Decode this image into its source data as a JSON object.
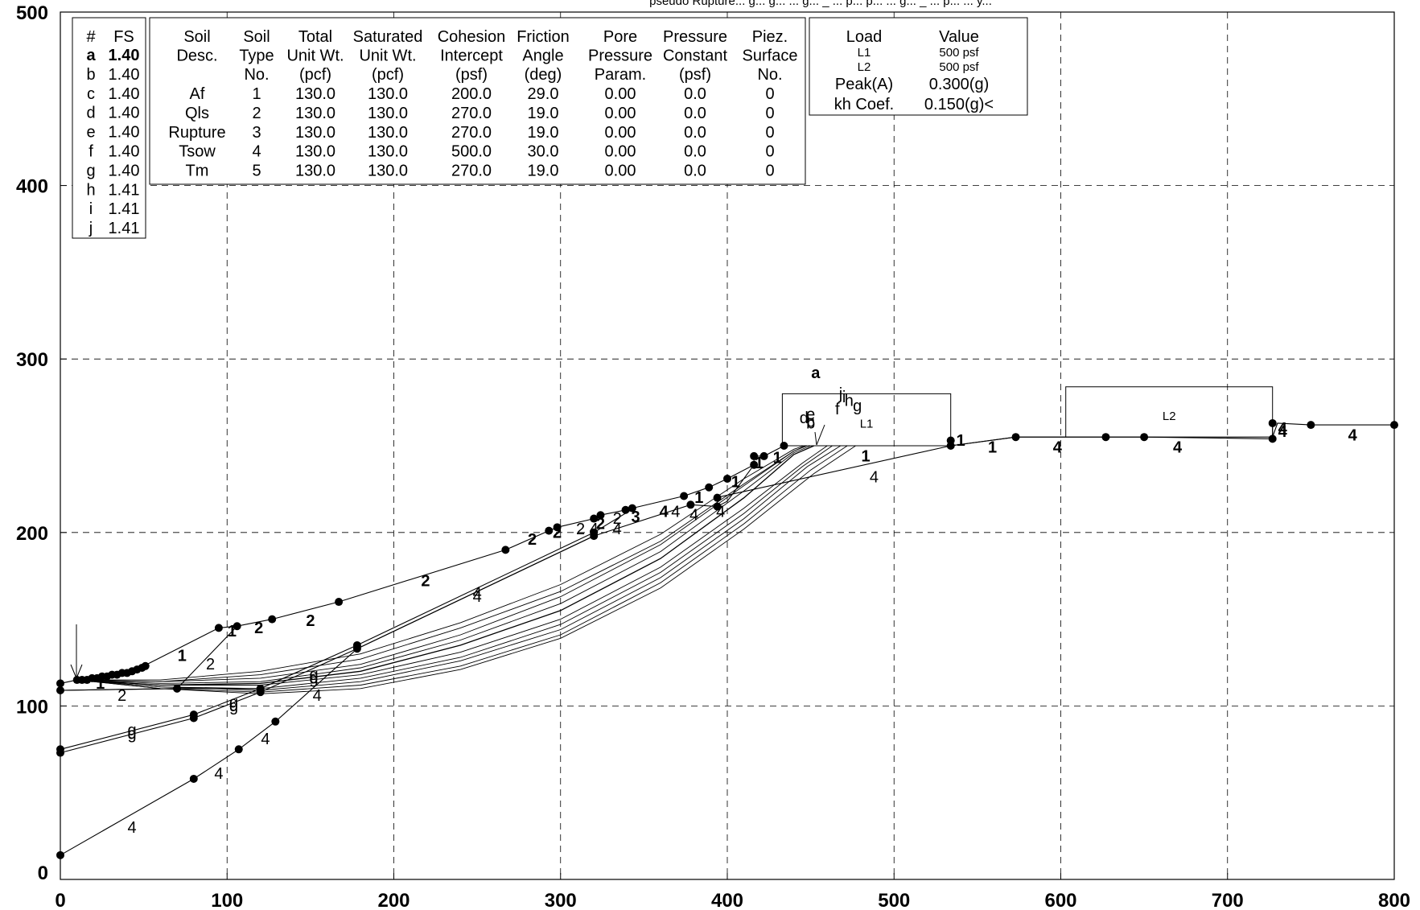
{
  "title_partial": "pseudo Rupture... g... g... ... g... _ ... p... p... ... g... _ ... p... ... y...",
  "x_axis": {
    "ticks": [
      "0",
      "100",
      "200",
      "300",
      "400",
      "500",
      "600",
      "700",
      "800"
    ]
  },
  "y_axis": {
    "ticks": [
      "0",
      "100",
      "200",
      "300",
      "400",
      "500"
    ]
  },
  "fs_table": {
    "headers": [
      "#",
      "FS"
    ],
    "rows": [
      {
        "id": "a",
        "fs": "1.40",
        "bold": true
      },
      {
        "id": "b",
        "fs": "1.40"
      },
      {
        "id": "c",
        "fs": "1.40"
      },
      {
        "id": "d",
        "fs": "1.40"
      },
      {
        "id": "e",
        "fs": "1.40"
      },
      {
        "id": "f",
        "fs": "1.40"
      },
      {
        "id": "g",
        "fs": "1.40"
      },
      {
        "id": "h",
        "fs": "1.41"
      },
      {
        "id": "i",
        "fs": "1.41"
      },
      {
        "id": "j",
        "fs": "1.41"
      }
    ]
  },
  "soil_table": {
    "headers": [
      [
        "Soil",
        "Desc."
      ],
      [
        "Soil",
        "Type",
        "No."
      ],
      [
        "Total",
        "Unit Wt.",
        "(pcf)"
      ],
      [
        "Saturated",
        "Unit Wt.",
        "(pcf)"
      ],
      [
        "Cohesion",
        "Intercept",
        "(psf)"
      ],
      [
        "Friction",
        "Angle",
        "(deg)"
      ],
      [
        "Pore",
        "Pressure",
        "Param."
      ],
      [
        "Pressure",
        "Constant",
        "(psf)"
      ],
      [
        "Piez.",
        "Surface",
        "No."
      ]
    ],
    "rows": [
      [
        "Af",
        "1",
        "130.0",
        "130.0",
        "200.0",
        "29.0",
        "0.00",
        "0.0",
        "0"
      ],
      [
        "Qls",
        "2",
        "130.0",
        "130.0",
        "270.0",
        "19.0",
        "0.00",
        "0.0",
        "0"
      ],
      [
        "Rupture",
        "3",
        "130.0",
        "130.0",
        "270.0",
        "19.0",
        "0.00",
        "0.0",
        "0"
      ],
      [
        "Tsow",
        "4",
        "130.0",
        "130.0",
        "500.0",
        "30.0",
        "0.00",
        "0.0",
        "0"
      ],
      [
        "Tm",
        "5",
        "130.0",
        "130.0",
        "270.0",
        "19.0",
        "0.00",
        "0.0",
        "0"
      ]
    ]
  },
  "load_table": {
    "headers": [
      "Load",
      "Value"
    ],
    "rows": [
      {
        "label": "L1",
        "value": "500 psf",
        "serif": true
      },
      {
        "label": "L2",
        "value": "500 psf",
        "serif": true
      },
      {
        "label": "Peak(A)",
        "value": "0.300(g)"
      },
      {
        "label": "kh Coef.",
        "value": "0.150(g)<"
      }
    ]
  },
  "surface_loads": [
    {
      "name": "L1",
      "x1": 433,
      "x2": 534,
      "y_base": 250,
      "y_top": 280
    },
    {
      "name": "L2",
      "x1": 603,
      "x2": 727,
      "y_base": 255,
      "y_top": 284
    }
  ],
  "boundaries": [
    {
      "points": [
        [
          0,
          113
        ],
        [
          10,
          115
        ],
        [
          20,
          116
        ],
        [
          30,
          118
        ],
        [
          40,
          120
        ],
        [
          45,
          121
        ],
        [
          50,
          123
        ],
        [
          95,
          145
        ],
        [
          106,
          146
        ],
        [
          127,
          150
        ],
        [
          167,
          160
        ],
        [
          267,
          190
        ],
        [
          293,
          201
        ],
        [
          298,
          203
        ],
        [
          320,
          208
        ],
        [
          324,
          210
        ],
        [
          339,
          213
        ],
        [
          343,
          214
        ],
        [
          374,
          221
        ],
        [
          389,
          226
        ],
        [
          400,
          231
        ],
        [
          416,
          239
        ],
        [
          416,
          244
        ],
        [
          422,
          244
        ],
        [
          434,
          250
        ],
        [
          534,
          250
        ],
        [
          573,
          255
        ],
        [
          727,
          255
        ],
        [
          730,
          263
        ],
        [
          750,
          262
        ],
        [
          800,
          262
        ]
      ]
    },
    {
      "points": [
        [
          0,
          109
        ],
        [
          70,
          110
        ],
        [
          106,
          146
        ]
      ]
    },
    {
      "points": [
        [
          0,
          109
        ],
        [
          70,
          110
        ],
        [
          120,
          110
        ],
        [
          178,
          135
        ],
        [
          320,
          200
        ],
        [
          344,
          214
        ]
      ]
    },
    {
      "points": [
        [
          0,
          75
        ],
        [
          80,
          95
        ],
        [
          120,
          110
        ]
      ]
    },
    {
      "points": [
        [
          0,
          73
        ],
        [
          80,
          93
        ],
        [
          120,
          108
        ],
        [
          178,
          133
        ],
        [
          320,
          198
        ],
        [
          378,
          216
        ],
        [
          394,
          215
        ],
        [
          400,
          218
        ],
        [
          416,
          239
        ]
      ]
    },
    {
      "points": [
        [
          0,
          14
        ],
        [
          80,
          58
        ],
        [
          107,
          75
        ],
        [
          129,
          91
        ],
        [
          178,
          133
        ],
        [
          320,
          198
        ]
      ]
    },
    {
      "points": [
        [
          393,
          220
        ],
        [
          534,
          250
        ],
        [
          573,
          255
        ],
        [
          627,
          255
        ],
        [
          650,
          255
        ],
        [
          727,
          254
        ]
      ]
    },
    {
      "points": [
        [
          727,
          254
        ],
        [
          727,
          263
        ]
      ]
    }
  ],
  "slip_surfaces": [
    {
      "id": "a",
      "points": [
        [
          10,
          115
        ],
        [
          60,
          112
        ],
        [
          120,
          113
        ],
        [
          180,
          120
        ],
        [
          240,
          135
        ],
        [
          300,
          155
        ],
        [
          360,
          185
        ],
        [
          410,
          220
        ],
        [
          440,
          245
        ],
        [
          452,
          250
        ]
      ]
    },
    {
      "id": "b",
      "points": [
        [
          10,
          115
        ],
        [
          60,
          113
        ],
        [
          120,
          114
        ],
        [
          180,
          122
        ],
        [
          240,
          138
        ],
        [
          300,
          159
        ],
        [
          360,
          189
        ],
        [
          410,
          224
        ],
        [
          440,
          246
        ],
        [
          450,
          250
        ]
      ]
    },
    {
      "id": "c",
      "points": [
        [
          10,
          115
        ],
        [
          60,
          114
        ],
        [
          120,
          116
        ],
        [
          180,
          124
        ],
        [
          240,
          141
        ],
        [
          300,
          163
        ],
        [
          360,
          193
        ],
        [
          410,
          227
        ],
        [
          440,
          247
        ],
        [
          448,
          250
        ]
      ]
    },
    {
      "id": "d",
      "points": [
        [
          10,
          115
        ],
        [
          60,
          114
        ],
        [
          120,
          118
        ],
        [
          180,
          127
        ],
        [
          240,
          145
        ],
        [
          300,
          166
        ],
        [
          360,
          195
        ],
        [
          410,
          228
        ],
        [
          440,
          247
        ],
        [
          447,
          250
        ]
      ]
    },
    {
      "id": "e",
      "points": [
        [
          10,
          115
        ],
        [
          60,
          115
        ],
        [
          120,
          120
        ],
        [
          180,
          130
        ],
        [
          240,
          148
        ],
        [
          300,
          170
        ],
        [
          360,
          199
        ],
        [
          410,
          231
        ],
        [
          440,
          248
        ],
        [
          446,
          250
        ]
      ]
    },
    {
      "id": "f",
      "points": [
        [
          10,
          115
        ],
        [
          60,
          112
        ],
        [
          120,
          112
        ],
        [
          180,
          118
        ],
        [
          240,
          131
        ],
        [
          300,
          150
        ],
        [
          360,
          180
        ],
        [
          410,
          214
        ],
        [
          445,
          240
        ],
        [
          460,
          250
        ]
      ]
    },
    {
      "id": "g",
      "points": [
        [
          10,
          115
        ],
        [
          60,
          111
        ],
        [
          120,
          110
        ],
        [
          180,
          116
        ],
        [
          240,
          128
        ],
        [
          300,
          147
        ],
        [
          360,
          177
        ],
        [
          410,
          211
        ],
        [
          445,
          238
        ],
        [
          463,
          250
        ]
      ]
    },
    {
      "id": "h",
      "points": [
        [
          10,
          115
        ],
        [
          60,
          111
        ],
        [
          120,
          109
        ],
        [
          180,
          114
        ],
        [
          240,
          126
        ],
        [
          300,
          144
        ],
        [
          360,
          174
        ],
        [
          410,
          208
        ],
        [
          448,
          238
        ],
        [
          468,
          250
        ]
      ]
    },
    {
      "id": "i",
      "points": [
        [
          10,
          115
        ],
        [
          60,
          110
        ],
        [
          120,
          108
        ],
        [
          180,
          112
        ],
        [
          240,
          123
        ],
        [
          300,
          141
        ],
        [
          360,
          171
        ],
        [
          410,
          205
        ],
        [
          450,
          236
        ],
        [
          472,
          250
        ]
      ]
    },
    {
      "id": "j",
      "points": [
        [
          10,
          115
        ],
        [
          60,
          110
        ],
        [
          120,
          107
        ],
        [
          180,
          110
        ],
        [
          240,
          121
        ],
        [
          300,
          139
        ],
        [
          360,
          168
        ],
        [
          410,
          202
        ],
        [
          452,
          234
        ],
        [
          477,
          250
        ]
      ]
    }
  ],
  "dots": [
    [
      0,
      113
    ],
    [
      0,
      109
    ],
    [
      0,
      75
    ],
    [
      0,
      73
    ],
    [
      0,
      14
    ],
    [
      10,
      115
    ],
    [
      13,
      115
    ],
    [
      16,
      115
    ],
    [
      19,
      116
    ],
    [
      22,
      116
    ],
    [
      25,
      117
    ],
    [
      28,
      117
    ],
    [
      31,
      118
    ],
    [
      34,
      118
    ],
    [
      37,
      119
    ],
    [
      40,
      119
    ],
    [
      43,
      120
    ],
    [
      46,
      121
    ],
    [
      49,
      122
    ],
    [
      51,
      123
    ],
    [
      70,
      110
    ],
    [
      80,
      95
    ],
    [
      80,
      93
    ],
    [
      80,
      58
    ],
    [
      95,
      145
    ],
    [
      106,
      146
    ],
    [
      107,
      75
    ],
    [
      120,
      110
    ],
    [
      120,
      108
    ],
    [
      127,
      150
    ],
    [
      129,
      91
    ],
    [
      167,
      160
    ],
    [
      178,
      135
    ],
    [
      178,
      133
    ],
    [
      267,
      190
    ],
    [
      293,
      201
    ],
    [
      298,
      203
    ],
    [
      320,
      208
    ],
    [
      320,
      200
    ],
    [
      320,
      198
    ],
    [
      324,
      210
    ],
    [
      339,
      213
    ],
    [
      343,
      214
    ],
    [
      374,
      221
    ],
    [
      378,
      216
    ],
    [
      389,
      226
    ],
    [
      394,
      215
    ],
    [
      400,
      231
    ],
    [
      394,
      220
    ],
    [
      416,
      244
    ],
    [
      416,
      239
    ],
    [
      422,
      244
    ],
    [
      434,
      250
    ],
    [
      534,
      253
    ],
    [
      534,
      250
    ],
    [
      573,
      255
    ],
    [
      627,
      255
    ],
    [
      650,
      255
    ],
    [
      727,
      263
    ],
    [
      727,
      254
    ],
    [
      750,
      262
    ],
    [
      800,
      262
    ]
  ],
  "material_labels": [
    {
      "text": "1",
      "x": 24,
      "y": 110,
      "bold": true
    },
    {
      "text": "2",
      "x": 37,
      "y": 103
    },
    {
      "text": "1",
      "x": 73,
      "y": 126,
      "bold": true
    },
    {
      "text": "2",
      "x": 90,
      "y": 121
    },
    {
      "text": "1",
      "x": 103,
      "y": 140,
      "bold": true
    },
    {
      "text": "2",
      "x": 119,
      "y": 142,
      "bold": true
    },
    {
      "text": "2",
      "x": 150,
      "y": 146,
      "bold": true
    },
    {
      "text": "2",
      "x": 219,
      "y": 169,
      "bold": true
    },
    {
      "text": "4",
      "x": 250,
      "y": 162
    },
    {
      "text": "4",
      "x": 250,
      "y": 160
    },
    {
      "text": "2",
      "x": 283,
      "y": 193,
      "bold": true
    },
    {
      "text": "2",
      "x": 298,
      "y": 197,
      "bold": true
    },
    {
      "text": "2",
      "x": 312,
      "y": 199
    },
    {
      "text": "2",
      "x": 324,
      "y": 202,
      "bold": true
    },
    {
      "text": "2",
      "x": 334,
      "y": 205
    },
    {
      "text": "4",
      "x": 320,
      "y": 199
    },
    {
      "text": "4",
      "x": 334,
      "y": 199
    },
    {
      "text": "3",
      "x": 345,
      "y": 206,
      "bold": true
    },
    {
      "text": "4",
      "x": 362,
      "y": 209,
      "bold": true
    },
    {
      "text": "4",
      "x": 369,
      "y": 209
    },
    {
      "text": "4",
      "x": 380,
      "y": 207
    },
    {
      "text": "1",
      "x": 383,
      "y": 217,
      "bold": true
    },
    {
      "text": "4",
      "x": 396,
      "y": 209
    },
    {
      "text": "1",
      "x": 405,
      "y": 226,
      "bold": true
    },
    {
      "text": "1",
      "x": 419,
      "y": 237,
      "bold": true
    },
    {
      "text": "1",
      "x": 430,
      "y": 240,
      "bold": true
    },
    {
      "text": "1",
      "x": 483,
      "y": 241,
      "bold": true
    },
    {
      "text": "4",
      "x": 488,
      "y": 229
    },
    {
      "text": "1",
      "x": 540,
      "y": 250,
      "bold": true
    },
    {
      "text": "1",
      "x": 559,
      "y": 246,
      "bold": true
    },
    {
      "text": "4",
      "x": 598,
      "y": 246,
      "bold": true
    },
    {
      "text": "4",
      "x": 670,
      "y": 246,
      "bold": true
    },
    {
      "text": "4",
      "x": 733,
      "y": 255,
      "bold": true
    },
    {
      "text": "4",
      "x": 733,
      "y": 257,
      "bold": true
    },
    {
      "text": "4",
      "x": 775,
      "y": 253,
      "bold": true
    },
    {
      "text": "4",
      "x": 154,
      "y": 103
    },
    {
      "text": "4",
      "x": 123,
      "y": 78
    },
    {
      "text": "4",
      "x": 95,
      "y": 58
    },
    {
      "text": "4",
      "x": 43,
      "y": 27
    }
  ],
  "surface_tags": [
    {
      "text": "a",
      "x": 453,
      "y": 289,
      "bold": true
    },
    {
      "text": "b",
      "x": 450,
      "y": 260
    },
    {
      "text": "c",
      "x": 450,
      "y": 261
    },
    {
      "text": "d",
      "x": 446,
      "y": 263
    },
    {
      "text": "e",
      "x": 450,
      "y": 265
    },
    {
      "text": "f",
      "x": 466,
      "y": 268
    },
    {
      "text": "g",
      "x": 478,
      "y": 270
    },
    {
      "text": "h",
      "x": 473,
      "y": 273
    },
    {
      "text": "i",
      "x": 470,
      "y": 275
    },
    {
      "text": "j",
      "x": 468,
      "y": 277
    },
    {
      "text": "g",
      "x": 152,
      "y": 115
    },
    {
      "text": "g",
      "x": 152,
      "y": 113
    },
    {
      "text": "g",
      "x": 104,
      "y": 99
    },
    {
      "text": "g",
      "x": 104,
      "y": 97
    },
    {
      "text": "g",
      "x": 43,
      "y": 83
    },
    {
      "text": "g",
      "x": 43,
      "y": 81
    }
  ]
}
